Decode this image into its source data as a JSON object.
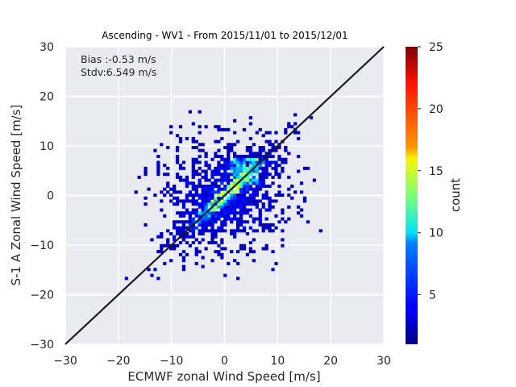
{
  "chart_data": {
    "type": "heatmap",
    "title": "Ascending - WV1 - From 2015/11/01 to 2015/12/01",
    "xlabel": "ECMWF zonal Wind Speed [m/s]",
    "ylabel": "S-1 A Zonal Wind Speed [m/s]",
    "xlim": [
      -30,
      30
    ],
    "ylim": [
      -30,
      30
    ],
    "xticks": [
      "−30",
      "−20",
      "−10",
      "0",
      "10",
      "20",
      "30"
    ],
    "yticks": [
      "−30",
      "−20",
      "−10",
      "0",
      "10",
      "20",
      "30"
    ],
    "grid": true,
    "annotations": {
      "bias": "Bias :-0.53 m/s",
      "stdv": "Stdv:6.549 m/s"
    },
    "reference_line": {
      "x": [
        -30,
        30
      ],
      "y": [
        -30,
        30
      ]
    },
    "colorbar": {
      "label": "count",
      "range": [
        1,
        25
      ],
      "ticks": [
        "5",
        "10",
        "15",
        "20",
        "25"
      ],
      "colormap": "jet"
    },
    "distribution": {
      "description_of_density": "2D histogram of paired zonal wind speeds concentrated along the 1:1 line",
      "x_range_of_data": [
        -20,
        18
      ],
      "y_range_of_data": [
        -17,
        17
      ],
      "peak_count": 14
    }
  }
}
